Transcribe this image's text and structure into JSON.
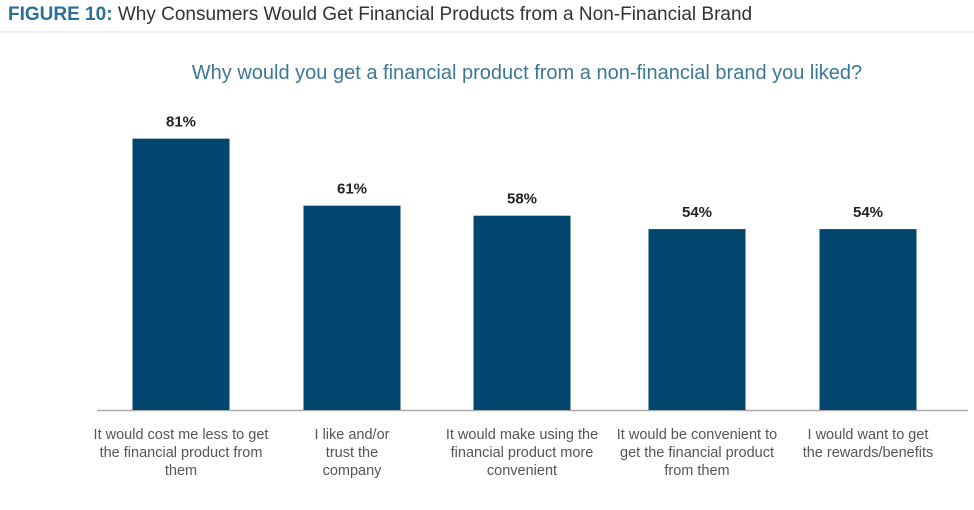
{
  "chart_data": {
    "type": "bar",
    "figure_label": "FIGURE 10:",
    "title": "Why Consumers Would Get Financial Products from a Non-Financial Brand",
    "subtitle": "Why would you get a financial product from a non-financial brand you liked?",
    "categories": [
      "It would cost me less to get the financial product from them",
      "I like and/or trust the company",
      "It would make using the financial product more convenient",
      "It would be convenient to get the financial product from them",
      "I would want to get the rewards/benefits"
    ],
    "values": [
      81,
      61,
      58,
      54,
      54
    ],
    "value_labels": [
      "81%",
      "61%",
      "58%",
      "54%",
      "54%"
    ],
    "color": "#00466e"
  }
}
